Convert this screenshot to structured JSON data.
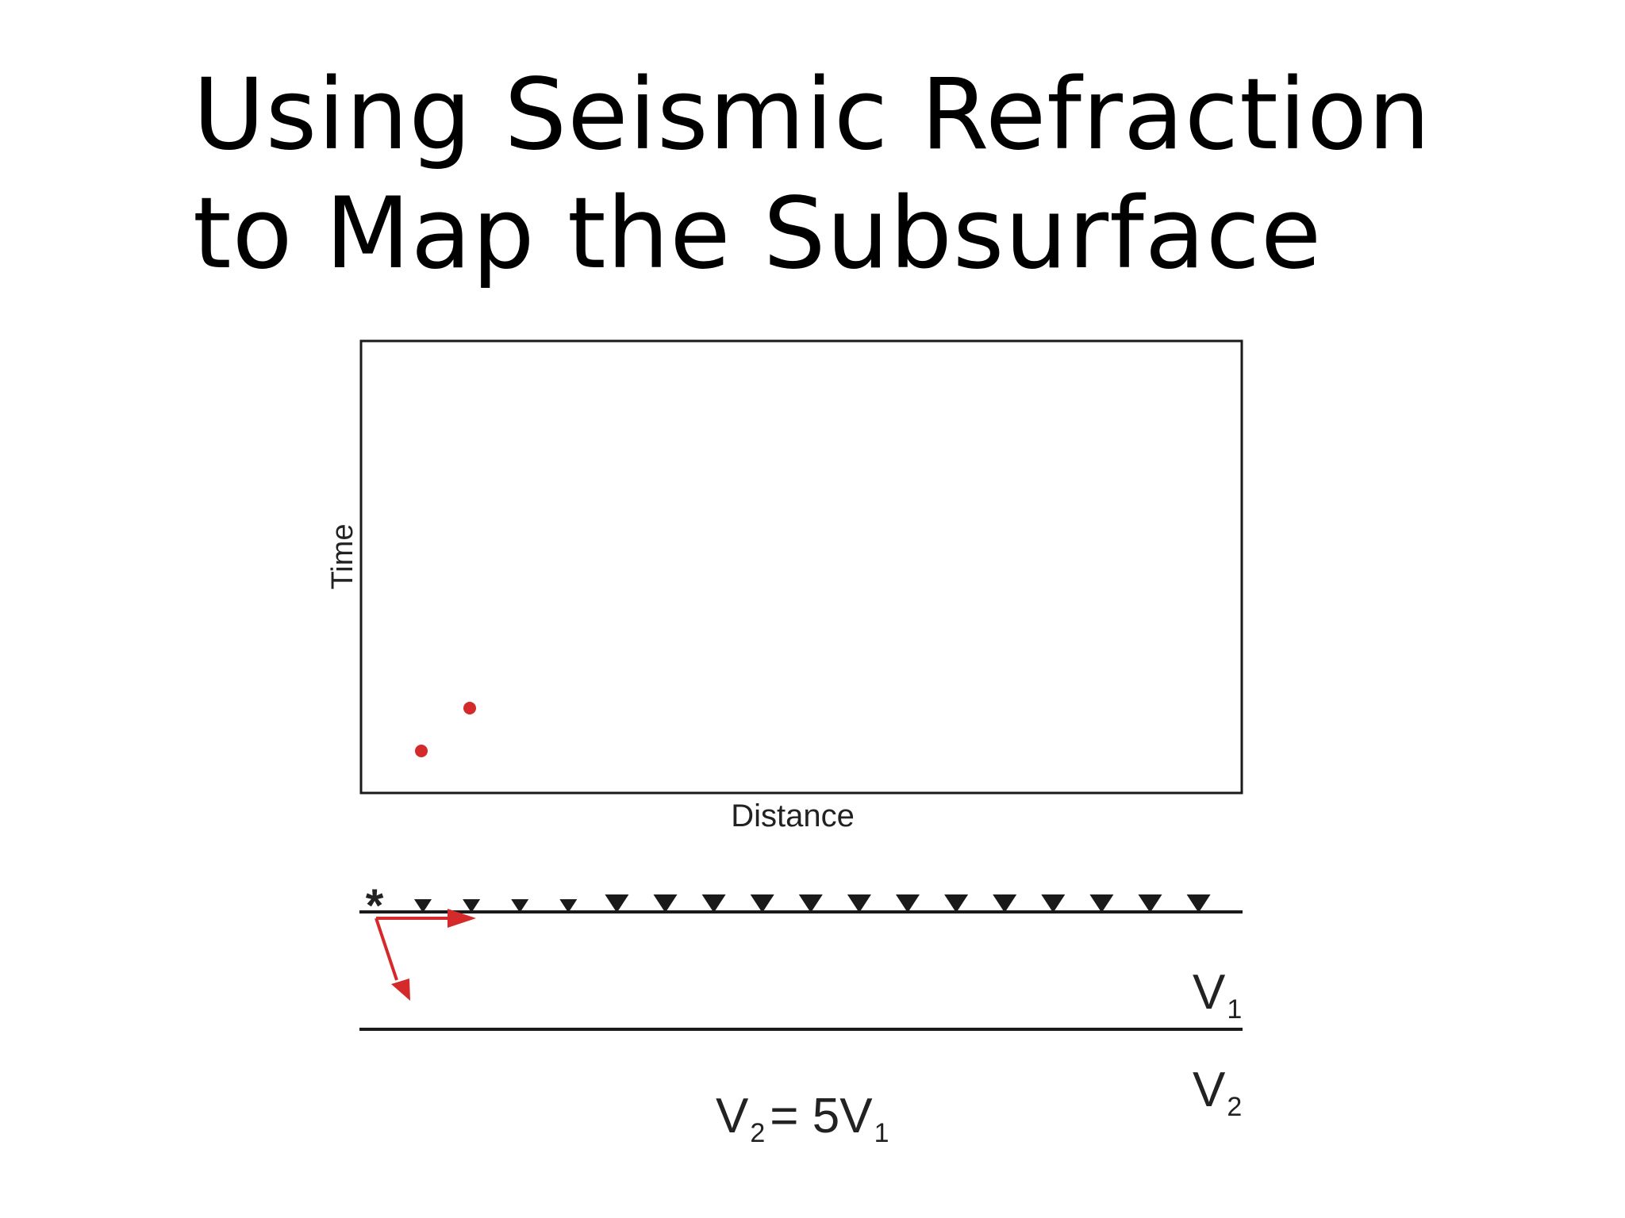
{
  "slide": {
    "title_line1": "Using Seismic Refraction",
    "title_line2": "to Map the Subsurface"
  },
  "plot": {
    "ylabel": "Time",
    "xlabel": "Distance",
    "point_color": "#d42a2a",
    "points": [
      {
        "label": "first geophone arrival",
        "geophone": 1
      },
      {
        "label": "second geophone arrival",
        "geophone": 2
      }
    ]
  },
  "cross_section": {
    "source_symbol": "*",
    "geophone_count": 17,
    "layer1": {
      "symbol": "V",
      "subscript": "1"
    },
    "layer2": {
      "symbol": "V",
      "subscript": "2"
    },
    "equation": {
      "lhs_symbol": "V",
      "lhs_sub": "2",
      "op": "= 5",
      "rhs_symbol": "V",
      "rhs_sub": "1"
    },
    "ray_color": "#d42a2a",
    "line_color": "#1a1a1a"
  }
}
